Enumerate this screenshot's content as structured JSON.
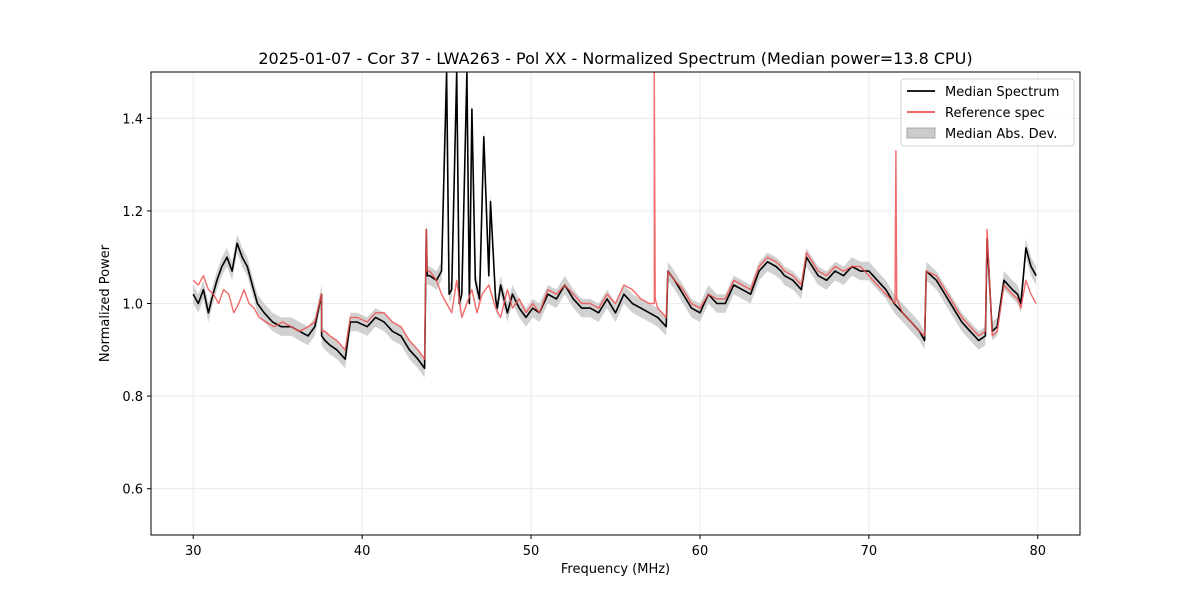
{
  "chart_data": {
    "type": "line",
    "title": "2025-01-07 - Cor 37 - LWA263 - Pol XX - Normalized Spectrum (Median power=13.8 CPU)",
    "xlabel": "Frequency (MHz)",
    "ylabel": "Normalized Power",
    "xlim": [
      27.5,
      82.5
    ],
    "ylim": [
      0.5,
      1.5
    ],
    "xticks": [
      30,
      40,
      50,
      60,
      70,
      80
    ],
    "yticks": [
      0.6,
      0.8,
      1.0,
      1.2,
      1.4
    ],
    "xtick_labels": [
      "30",
      "40",
      "50",
      "60",
      "70",
      "80"
    ],
    "ytick_labels": [
      "0.6",
      "0.8",
      "1.0",
      "1.2",
      "1.4"
    ],
    "grid": true,
    "legend_position": "top-right",
    "legend": [
      {
        "label": "Median Spectrum",
        "kind": "line",
        "color": "#000000"
      },
      {
        "label": "Reference spec",
        "kind": "line",
        "color": "#f05050"
      },
      {
        "label": "Median Abs. Dev.",
        "kind": "band",
        "color": "#cccccc"
      }
    ],
    "series": [
      {
        "name": "Median Spectrum",
        "color": "#000000",
        "x": [
          30.0,
          30.3,
          30.6,
          30.9,
          31.1,
          31.4,
          31.7,
          32.0,
          32.3,
          32.6,
          32.9,
          33.2,
          33.5,
          33.8,
          34.2,
          34.7,
          35.2,
          35.8,
          36.3,
          36.8,
          37.2,
          37.6,
          37.6,
          37.8,
          38.1,
          38.5,
          39.0,
          39.3,
          39.7,
          40.3,
          40.8,
          41.3,
          41.8,
          42.3,
          42.8,
          43.3,
          43.7,
          43.8,
          43.85,
          44.0,
          44.4,
          44.7,
          45.0,
          45.15,
          45.3,
          45.6,
          45.75,
          45.9,
          46.2,
          46.35,
          46.5,
          46.7,
          46.95,
          47.2,
          47.5,
          47.6,
          47.9,
          48.0,
          48.2,
          48.6,
          48.9,
          49.3,
          49.7,
          50.1,
          50.5,
          51.0,
          51.5,
          52.0,
          52.5,
          53.0,
          53.5,
          54.0,
          54.5,
          55.0,
          55.5,
          56.0,
          56.5,
          57.0,
          57.5,
          58.0,
          58.1,
          58.5,
          59.0,
          59.5,
          60.0,
          60.5,
          61.0,
          61.5,
          62.0,
          62.5,
          63.0,
          63.5,
          64.0,
          64.5,
          64.8,
          65.0,
          65.5,
          66.0,
          66.3,
          67.0,
          67.5,
          68.0,
          68.5,
          69.0,
          69.5,
          70.0,
          70.5,
          71.0,
          71.5,
          72.0,
          72.5,
          73.0,
          73.3,
          73.4,
          74.0,
          74.5,
          75.0,
          75.5,
          76.0,
          76.5,
          76.9,
          77.0,
          77.3,
          77.6,
          78.0,
          78.5,
          78.8,
          79.0,
          79.3,
          79.6,
          79.9
        ],
        "y": [
          1.02,
          1.0,
          1.03,
          0.98,
          1.01,
          1.05,
          1.08,
          1.1,
          1.07,
          1.13,
          1.1,
          1.08,
          1.04,
          1.0,
          0.98,
          0.96,
          0.95,
          0.95,
          0.94,
          0.93,
          0.95,
          1.02,
          0.93,
          0.92,
          0.91,
          0.9,
          0.88,
          0.96,
          0.96,
          0.95,
          0.97,
          0.96,
          0.94,
          0.93,
          0.9,
          0.88,
          0.86,
          1.16,
          1.06,
          1.06,
          1.05,
          1.07,
          1.5,
          1.02,
          1.03,
          1.5,
          1.0,
          1.02,
          1.5,
          1.0,
          1.42,
          1.05,
          1.01,
          1.36,
          1.06,
          1.22,
          1.01,
          0.99,
          1.04,
          0.98,
          1.02,
          0.99,
          0.97,
          0.99,
          0.98,
          1.02,
          1.01,
          1.04,
          1.01,
          0.99,
          0.99,
          0.98,
          1.01,
          0.98,
          1.02,
          1.0,
          0.99,
          0.98,
          0.97,
          0.95,
          1.07,
          1.05,
          1.02,
          0.99,
          0.98,
          1.02,
          1.0,
          1.0,
          1.04,
          1.03,
          1.02,
          1.07,
          1.09,
          1.08,
          1.07,
          1.06,
          1.05,
          1.03,
          1.1,
          1.06,
          1.05,
          1.07,
          1.06,
          1.08,
          1.07,
          1.07,
          1.05,
          1.03,
          1.0,
          0.98,
          0.96,
          0.94,
          0.92,
          1.07,
          1.05,
          1.02,
          0.99,
          0.96,
          0.94,
          0.92,
          0.93,
          1.14,
          0.94,
          0.95,
          1.05,
          1.03,
          1.02,
          1.0,
          1.12,
          1.08,
          1.06
        ]
      },
      {
        "name": "Reference spec",
        "color": "#f05050",
        "x": [
          30.0,
          30.3,
          30.6,
          30.9,
          31.2,
          31.5,
          31.8,
          32.1,
          32.4,
          32.7,
          33.0,
          33.3,
          33.6,
          33.9,
          34.3,
          34.8,
          35.3,
          35.8,
          36.3,
          36.8,
          37.2,
          37.6,
          37.6,
          37.8,
          38.1,
          38.5,
          39.0,
          39.3,
          39.7,
          40.3,
          40.8,
          41.3,
          41.8,
          42.3,
          42.8,
          43.3,
          43.7,
          43.8,
          43.85,
          44.0,
          44.4,
          44.7,
          45.0,
          45.3,
          45.6,
          45.9,
          46.2,
          46.5,
          46.8,
          47.1,
          47.5,
          47.9,
          48.2,
          48.6,
          48.9,
          49.3,
          49.7,
          50.1,
          50.5,
          51.0,
          51.5,
          52.0,
          52.5,
          53.0,
          53.5,
          54.0,
          54.5,
          55.0,
          55.5,
          56.0,
          56.5,
          57.0,
          57.3,
          57.3,
          57.35,
          57.5,
          58.0,
          58.1,
          58.5,
          59.0,
          59.5,
          60.0,
          60.5,
          61.0,
          61.5,
          62.0,
          62.5,
          63.0,
          63.5,
          64.0,
          64.5,
          64.8,
          65.0,
          65.5,
          66.0,
          66.3,
          67.0,
          67.5,
          68.0,
          68.5,
          69.0,
          69.5,
          70.0,
          70.5,
          71.0,
          71.55,
          71.6,
          71.65,
          72.0,
          72.5,
          73.0,
          73.3,
          73.4,
          74.0,
          74.5,
          75.0,
          75.5,
          76.0,
          76.5,
          76.9,
          77.0,
          77.3,
          77.6,
          78.0,
          78.5,
          78.8,
          79.0,
          79.3,
          79.6,
          79.9
        ],
        "y": [
          1.05,
          1.04,
          1.06,
          1.03,
          1.02,
          1.0,
          1.03,
          1.02,
          0.98,
          1.0,
          1.03,
          1.0,
          0.99,
          0.97,
          0.96,
          0.95,
          0.96,
          0.95,
          0.94,
          0.95,
          0.96,
          1.02,
          0.94,
          0.94,
          0.93,
          0.92,
          0.9,
          0.97,
          0.97,
          0.96,
          0.98,
          0.98,
          0.96,
          0.95,
          0.92,
          0.9,
          0.88,
          1.16,
          1.07,
          1.07,
          1.05,
          1.02,
          1.0,
          0.98,
          1.05,
          0.97,
          1.0,
          1.03,
          0.98,
          1.02,
          1.04,
          0.99,
          0.97,
          1.03,
          0.99,
          1.01,
          0.98,
          1.0,
          0.98,
          1.03,
          1.02,
          1.04,
          1.02,
          1.0,
          1.0,
          0.99,
          1.02,
          1.0,
          1.04,
          1.03,
          1.01,
          1.0,
          1.0,
          1.5,
          1.01,
          0.99,
          0.97,
          1.07,
          1.05,
          1.03,
          1.0,
          0.99,
          1.02,
          1.01,
          1.01,
          1.05,
          1.04,
          1.03,
          1.08,
          1.1,
          1.09,
          1.08,
          1.07,
          1.06,
          1.04,
          1.11,
          1.07,
          1.06,
          1.08,
          1.07,
          1.08,
          1.08,
          1.06,
          1.04,
          1.02,
          1.0,
          1.33,
          1.01,
          0.98,
          0.96,
          0.94,
          0.93,
          1.07,
          1.06,
          1.03,
          1.0,
          0.97,
          0.95,
          0.93,
          0.94,
          1.16,
          0.93,
          0.94,
          1.04,
          1.02,
          1.01,
          0.99,
          1.05,
          1.02,
          1.0
        ]
      },
      {
        "name": "Median Abs. Dev.",
        "kind": "band",
        "color": "#cccccc",
        "spread": 0.02
      }
    ]
  }
}
